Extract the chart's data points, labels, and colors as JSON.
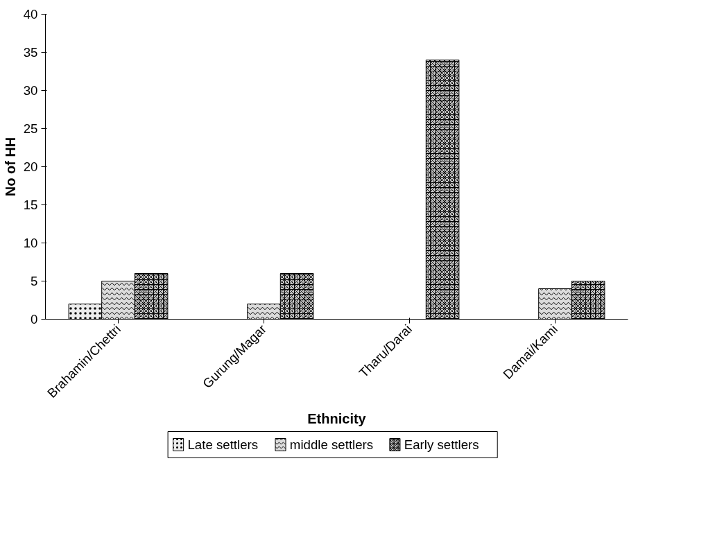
{
  "chart_data": {
    "type": "bar",
    "xlabel": "Ethnicity",
    "ylabel": "No of HH",
    "categories": [
      "Brahamin/Chettri",
      "Gurung/Magar",
      "Tharu/Darai",
      "Damai/Kami"
    ],
    "series": [
      {
        "name": "Late settlers",
        "color": "#ececec",
        "values": [
          2,
          null,
          null,
          null
        ]
      },
      {
        "name": "middle settlers",
        "color": "#dcdcdc",
        "values": [
          5,
          2,
          null,
          4
        ]
      },
      {
        "name": "Early settlers",
        "color": "#c4c4c4",
        "values": [
          6,
          6,
          34,
          5
        ]
      }
    ],
    "ylim": [
      0,
      40
    ],
    "yticks": [
      0,
      5,
      10,
      15,
      20,
      25,
      30,
      35,
      40
    ],
    "grid": false,
    "legend": "bottom"
  }
}
